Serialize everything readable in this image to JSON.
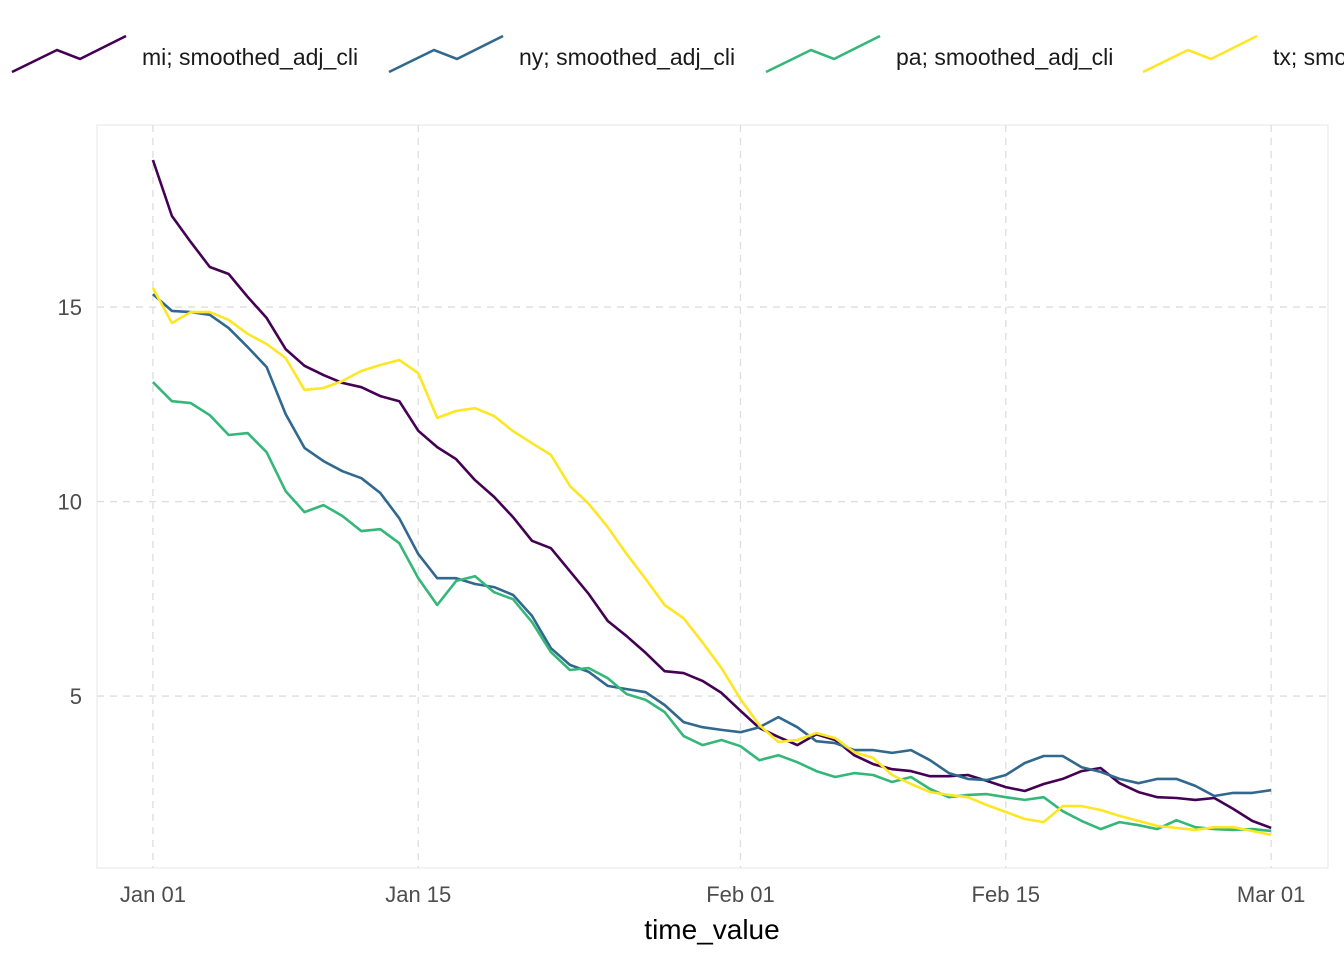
{
  "chart_data": {
    "type": "line",
    "title": "",
    "xlabel": "time_value",
    "ylabel": "",
    "x_start": "2021-01-01",
    "x_unit": "day",
    "xlim_days": [
      -2.95,
      62.0
    ],
    "ylim": [
      0.58,
      19.68
    ],
    "grid": true,
    "legend_position": "top",
    "x_ticks": [
      {
        "day": 0,
        "label": "Jan 01"
      },
      {
        "day": 14,
        "label": "Jan 15"
      },
      {
        "day": 31,
        "label": "Feb 01"
      },
      {
        "day": 45,
        "label": "Feb 15"
      },
      {
        "day": 59,
        "label": "Mar 01"
      }
    ],
    "y_ticks": [
      {
        "value": 5,
        "label": "5"
      },
      {
        "value": 10,
        "label": "10"
      },
      {
        "value": 15,
        "label": "15"
      }
    ],
    "series": [
      {
        "name": "mi; smoothed_adj_cli",
        "color": "#440154",
        "values": [
          18.78,
          17.34,
          16.67,
          16.03,
          15.85,
          15.26,
          14.72,
          13.92,
          13.49,
          13.25,
          13.05,
          12.94,
          12.71,
          12.58,
          11.82,
          11.4,
          11.09,
          10.55,
          10.12,
          9.6,
          8.99,
          8.8,
          8.21,
          7.62,
          6.93,
          6.54,
          6.11,
          5.64,
          5.59,
          5.39,
          5.08,
          4.62,
          4.18,
          3.95,
          3.74,
          4.02,
          3.87,
          3.48,
          3.25,
          3.12,
          3.07,
          2.94,
          2.94,
          2.97,
          2.82,
          2.66,
          2.56,
          2.74,
          2.87,
          3.07,
          3.15,
          2.76,
          2.53,
          2.4,
          2.38,
          2.33,
          2.38,
          2.1,
          1.79,
          1.61
        ]
      },
      {
        "name": "ny; smoothed_adj_cli",
        "color": "#31688E",
        "values": [
          15.33,
          14.9,
          14.87,
          14.8,
          14.46,
          13.97,
          13.46,
          12.25,
          11.38,
          11.04,
          10.78,
          10.6,
          10.22,
          9.57,
          8.65,
          8.03,
          8.03,
          7.88,
          7.8,
          7.6,
          7.06,
          6.23,
          5.8,
          5.62,
          5.26,
          5.18,
          5.1,
          4.77,
          4.33,
          4.2,
          4.13,
          4.07,
          4.2,
          4.46,
          4.2,
          3.84,
          3.79,
          3.61,
          3.61,
          3.54,
          3.61,
          3.35,
          3.02,
          2.87,
          2.84,
          2.97,
          3.28,
          3.46,
          3.46,
          3.17,
          3.05,
          2.87,
          2.76,
          2.87,
          2.87,
          2.69,
          2.43,
          2.51,
          2.51,
          2.58
        ]
      },
      {
        "name": "pa; smoothed_adj_cli",
        "color": "#35B779",
        "values": [
          13.07,
          12.58,
          12.53,
          12.22,
          11.71,
          11.76,
          11.27,
          10.27,
          9.73,
          9.91,
          9.63,
          9.24,
          9.29,
          8.93,
          8.03,
          7.34,
          7.96,
          8.08,
          7.67,
          7.49,
          6.9,
          6.13,
          5.67,
          5.72,
          5.46,
          5.05,
          4.9,
          4.59,
          3.97,
          3.74,
          3.87,
          3.71,
          3.35,
          3.48,
          3.3,
          3.07,
          2.92,
          3.02,
          2.97,
          2.79,
          2.92,
          2.61,
          2.4,
          2.46,
          2.48,
          2.4,
          2.33,
          2.4,
          2.04,
          1.79,
          1.58,
          1.76,
          1.68,
          1.58,
          1.81,
          1.63,
          1.58,
          1.56,
          1.58,
          1.53
        ]
      },
      {
        "name": "tx; smoothed_adj_cli",
        "color": "#FDE725",
        "values": [
          15.49,
          14.59,
          14.87,
          14.87,
          14.67,
          14.31,
          14.05,
          13.69,
          12.87,
          12.92,
          13.1,
          13.36,
          13.51,
          13.64,
          13.3,
          12.15,
          12.33,
          12.4,
          12.2,
          11.81,
          11.5,
          11.2,
          10.4,
          9.94,
          9.34,
          8.65,
          8.01,
          7.34,
          7.0,
          6.38,
          5.72,
          4.92,
          4.25,
          3.82,
          3.87,
          4.05,
          3.92,
          3.56,
          3.41,
          2.97,
          2.74,
          2.53,
          2.46,
          2.4,
          2.2,
          2.02,
          1.84,
          1.76,
          2.17,
          2.17,
          2.07,
          1.92,
          1.79,
          1.66,
          1.61,
          1.56,
          1.63,
          1.63,
          1.53,
          1.43
        ]
      }
    ]
  }
}
